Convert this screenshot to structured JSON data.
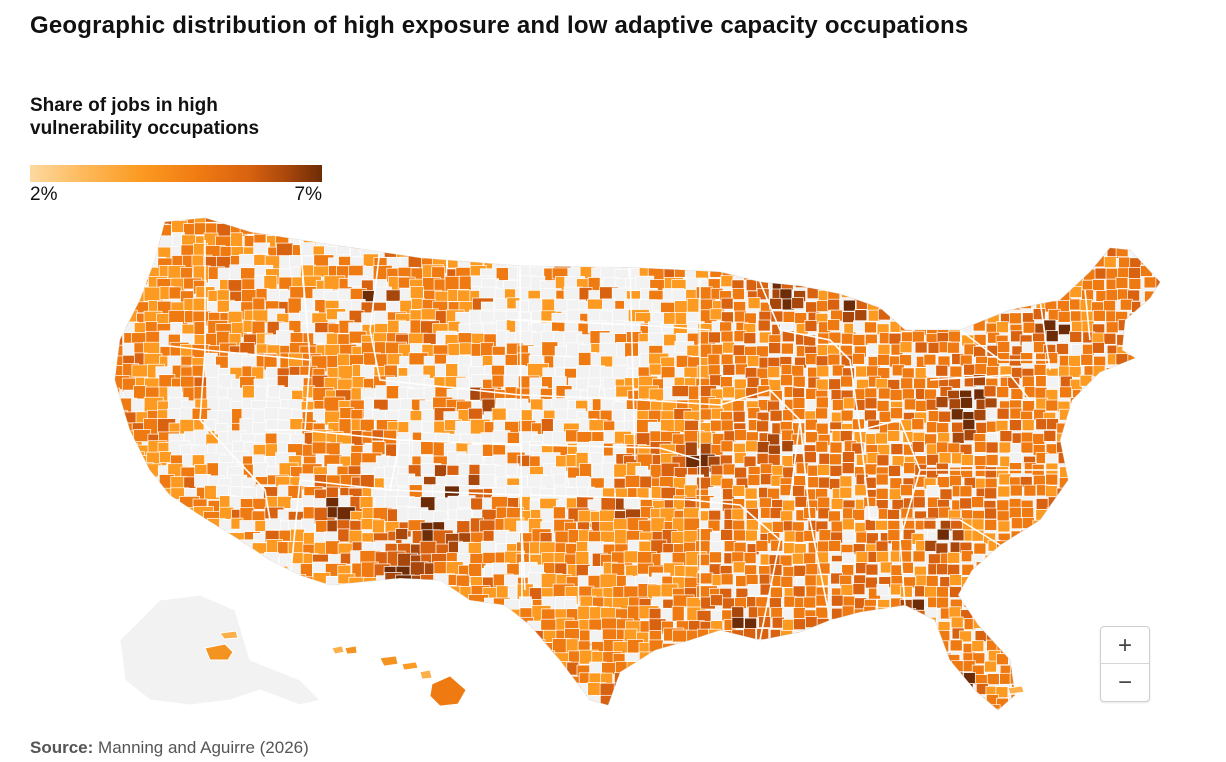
{
  "title": "Geographic distribution of high exposure and low adaptive capacity occupations",
  "legend": {
    "title": "Share of jobs in high vulnerability occupations",
    "min_label": "2%",
    "max_label": "7%",
    "scale_colors": [
      "#fdd9a0",
      "#fdba5c",
      "#fc9a21",
      "#f07a12",
      "#d86210",
      "#a8470c",
      "#6e2c06"
    ]
  },
  "map": {
    "no_data_color": "#f2f2f2",
    "border_color": "#ffffff"
  },
  "zoom_controls": {
    "zoom_in": "+",
    "zoom_out": "−"
  },
  "source": {
    "label": "Source:",
    "text": "Manning and Aguirre (2026)"
  }
}
